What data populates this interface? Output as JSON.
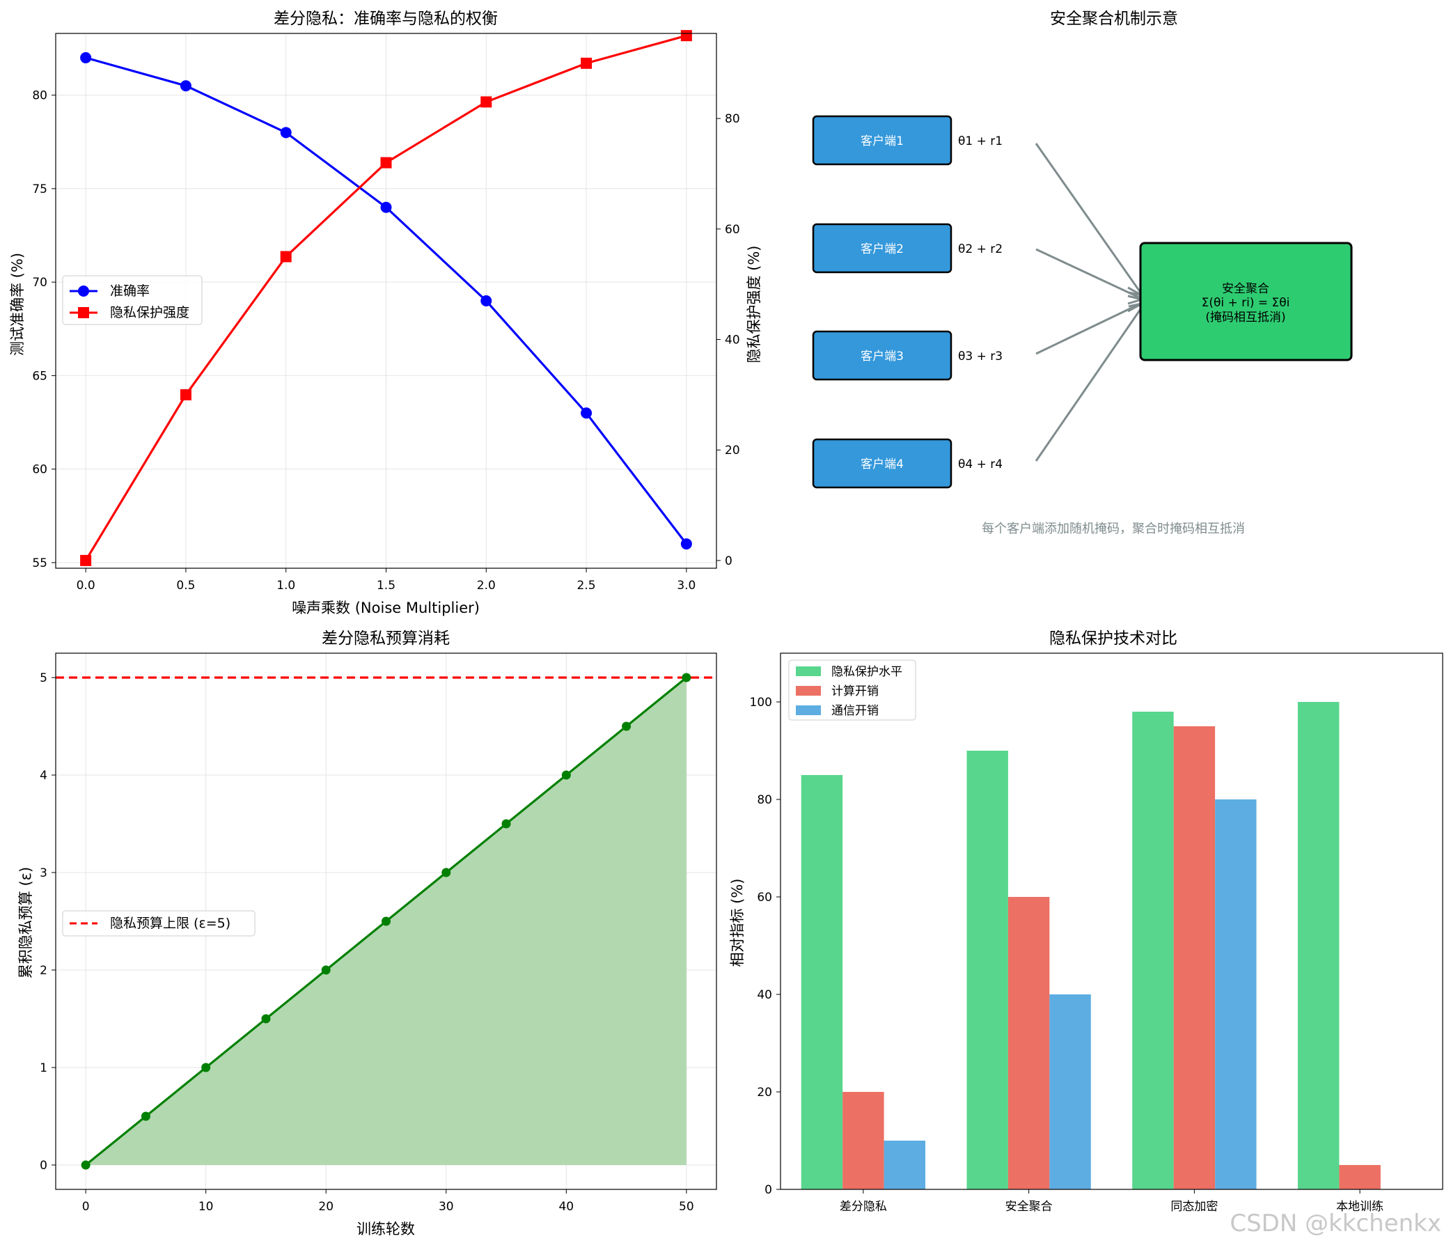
{
  "watermark": "CSDN @kkchenkx",
  "chart_data": [
    {
      "id": "tradeoff",
      "type": "line",
      "title": "差分隐私：准确率与隐私的权衡",
      "xlabel": "噪声乘数 (Noise Multiplier)",
      "ylabel": "测试准确率 (%)",
      "ylabel_right": "隐私保护强度 (%)",
      "x": [
        0.0,
        0.5,
        1.0,
        1.5,
        2.0,
        2.5,
        3.0
      ],
      "x_ticks": [
        "0.0",
        "0.5",
        "1.0",
        "1.5",
        "2.0",
        "2.5",
        "3.0"
      ],
      "xlim": [
        -0.15,
        3.15
      ],
      "ylim": [
        54.7,
        83.3
      ],
      "ylim_right": [
        -1.4,
        95.4
      ],
      "y_ticks": [
        55,
        60,
        65,
        70,
        75,
        80
      ],
      "y_ticks_right": [
        0,
        20,
        40,
        60,
        80
      ],
      "series": [
        {
          "name": "准确率",
          "axis": "left",
          "color": "#0000ff",
          "marker": "circle",
          "values": [
            82,
            80.5,
            78,
            74,
            69,
            63,
            56
          ]
        },
        {
          "name": "隐私保护强度",
          "axis": "right",
          "color": "#ff0000",
          "marker": "square",
          "values": [
            0,
            30,
            55,
            72,
            83,
            90,
            95
          ]
        }
      ],
      "legend": "center-left",
      "grid": true
    },
    {
      "id": "secure_agg",
      "type": "diagram",
      "title": "安全聚合机制示意",
      "clients": [
        {
          "label": "客户端1",
          "formula": "θ1 + r1"
        },
        {
          "label": "客户端2",
          "formula": "θ2 + r2"
        },
        {
          "label": "客户端3",
          "formula": "θ3 + r3"
        },
        {
          "label": "客户端4",
          "formula": "θ4 + r4"
        }
      ],
      "aggregator": {
        "line1": "安全聚合",
        "line2": "Σ(θi + ri) = Σθi",
        "line3": "(掩码相互抵消)"
      },
      "note": "每个客户端添加随机掩码，聚合时掩码相互抵消",
      "colors": {
        "client": "#3498db",
        "aggregator": "#2ecc71",
        "arrow": "#7f8c8d",
        "note": "#7f8c8d"
      }
    },
    {
      "id": "budget",
      "type": "area",
      "title": "差分隐私预算消耗",
      "xlabel": "训练轮数",
      "ylabel": "累积隐私预算 (ε)",
      "x": [
        0,
        5,
        10,
        15,
        20,
        25,
        30,
        35,
        40,
        45,
        50
      ],
      "values": [
        0,
        0.5,
        1,
        1.5,
        2,
        2.5,
        3,
        3.5,
        4,
        4.5,
        5
      ],
      "x_ticks": [
        0,
        10,
        20,
        30,
        40,
        50
      ],
      "y_ticks": [
        0,
        1,
        2,
        3,
        4,
        5
      ],
      "xlim": [
        -2.5,
        52.5
      ],
      "ylim": [
        -0.25,
        5.25
      ],
      "line_color": "#008000",
      "fill_color": "#b2d8b0",
      "threshold": {
        "value": 5,
        "label": "隐私预算上限 (ε=5)",
        "color": "#ff0000"
      },
      "legend": "center-left",
      "grid": true
    },
    {
      "id": "compare",
      "type": "bar",
      "title": "隐私保护技术对比",
      "ylabel": "相对指标 (%)",
      "categories": [
        "差分隐私",
        "安全聚合",
        "同态加密",
        "本地训练"
      ],
      "series": [
        {
          "name": "隐私保护水平",
          "color": "#58d68d",
          "values": [
            85,
            90,
            98,
            100
          ]
        },
        {
          "name": "计算开销",
          "color": "#ec7063",
          "values": [
            20,
            60,
            95,
            5
          ]
        },
        {
          "name": "通信开销",
          "color": "#5dade2",
          "values": [
            10,
            40,
            80,
            0
          ]
        }
      ],
      "y_ticks": [
        0,
        20,
        40,
        60,
        80,
        100
      ],
      "ylim": [
        0,
        110
      ],
      "legend": "top-left",
      "grid": false
    }
  ]
}
